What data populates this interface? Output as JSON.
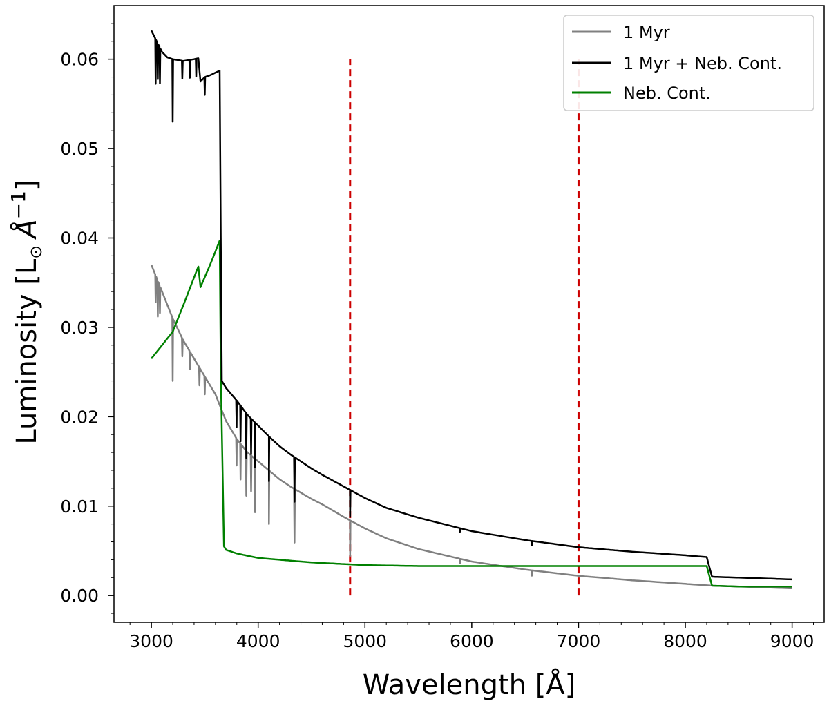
{
  "chart_data": {
    "type": "line",
    "xlabel": "Wavelength [Å]",
    "ylabel_parts": {
      "prefix": "Luminosity [L",
      "sun_symbol": "⊙",
      "unit": "Å",
      "exponent": "−1",
      "suffix": "]"
    },
    "xlim": [
      2650,
      9300
    ],
    "ylim": [
      -0.003,
      0.066
    ],
    "x_ticks": [
      3000,
      4000,
      5000,
      6000,
      7000,
      8000,
      9000
    ],
    "x_tick_labels": [
      "3000",
      "4000",
      "5000",
      "6000",
      "7000",
      "8000",
      "9000"
    ],
    "y_ticks": [
      0.0,
      0.01,
      0.02,
      0.03,
      0.04,
      0.05,
      0.06
    ],
    "y_tick_labels": [
      "0.00",
      "0.01",
      "0.02",
      "0.03",
      "0.04",
      "0.05",
      "0.06"
    ],
    "legend_position": "top-right",
    "series": [
      {
        "name": "1 Myr",
        "color": "#808080",
        "x": [
          3000,
          3100,
          3200,
          3300,
          3400,
          3500,
          3600,
          3700,
          3800,
          3900,
          4000,
          4100,
          4200,
          4300,
          4400,
          4500,
          4600,
          4800,
          5000,
          5200,
          5500,
          6000,
          6500,
          7000,
          7500,
          8000,
          8250,
          8500,
          9000
        ],
        "values": [
          0.037,
          0.034,
          0.031,
          0.0285,
          0.0265,
          0.0245,
          0.0225,
          0.0195,
          0.0175,
          0.016,
          0.015,
          0.014,
          0.013,
          0.0122,
          0.0115,
          0.0108,
          0.0102,
          0.0088,
          0.0075,
          0.0064,
          0.0052,
          0.0038,
          0.0029,
          0.0022,
          0.0017,
          0.0013,
          0.0011,
          0.001,
          0.0008
        ],
        "absorption_lines": [
          {
            "x": 3040,
            "depth": 0.003
          },
          {
            "x": 3060,
            "depth": 0.004
          },
          {
            "x": 3080,
            "depth": 0.003
          },
          {
            "x": 3200,
            "depth": 0.007
          },
          {
            "x": 3290,
            "depth": 0.002
          },
          {
            "x": 3360,
            "depth": 0.002
          },
          {
            "x": 3450,
            "depth": 0.002
          },
          {
            "x": 3500,
            "depth": 0.002
          },
          {
            "x": 3798,
            "depth": 0.003
          },
          {
            "x": 3835,
            "depth": 0.004
          },
          {
            "x": 3889,
            "depth": 0.005
          },
          {
            "x": 3934,
            "depth": 0.004
          },
          {
            "x": 3970,
            "depth": 0.006
          },
          {
            "x": 4101,
            "depth": 0.006
          },
          {
            "x": 4340,
            "depth": 0.006
          },
          {
            "x": 4861,
            "depth": 0.004
          },
          {
            "x": 5890,
            "depth": 0.0005
          },
          {
            "x": 6563,
            "depth": 0.0006
          }
        ]
      },
      {
        "name": "1 Myr + Neb. Cont.",
        "color": "#000000",
        "x": [
          3000,
          3050,
          3100,
          3150,
          3200,
          3300,
          3400,
          3440,
          3460,
          3500,
          3550,
          3600,
          3640,
          3650,
          3660,
          3700,
          3800,
          3900,
          4000,
          4100,
          4200,
          4300,
          4400,
          4500,
          4600,
          4800,
          5000,
          5200,
          5500,
          6000,
          6500,
          7000,
          7500,
          8000,
          8200,
          8250,
          8500,
          9000
        ],
        "values": [
          0.0632,
          0.062,
          0.0608,
          0.0602,
          0.06,
          0.0598,
          0.06,
          0.0601,
          0.0575,
          0.058,
          0.0582,
          0.0585,
          0.0587,
          0.04,
          0.024,
          0.0232,
          0.0218,
          0.0202,
          0.019,
          0.0178,
          0.0167,
          0.0158,
          0.015,
          0.0142,
          0.0135,
          0.0122,
          0.0109,
          0.0098,
          0.0087,
          0.0072,
          0.0062,
          0.0054,
          0.0049,
          0.0045,
          0.0043,
          0.0021,
          0.002,
          0.0018
        ],
        "absorption_lines": [
          {
            "x": 3040,
            "depth": 0.005
          },
          {
            "x": 3060,
            "depth": 0.004
          },
          {
            "x": 3080,
            "depth": 0.004
          },
          {
            "x": 3200,
            "depth": 0.007
          },
          {
            "x": 3290,
            "depth": 0.002
          },
          {
            "x": 3360,
            "depth": 0.002
          },
          {
            "x": 3420,
            "depth": 0.002
          },
          {
            "x": 3500,
            "depth": 0.002
          },
          {
            "x": 3798,
            "depth": 0.003
          },
          {
            "x": 3835,
            "depth": 0.004
          },
          {
            "x": 3889,
            "depth": 0.005
          },
          {
            "x": 3934,
            "depth": 0.004
          },
          {
            "x": 3970,
            "depth": 0.005
          },
          {
            "x": 4101,
            "depth": 0.005
          },
          {
            "x": 4340,
            "depth": 0.005
          },
          {
            "x": 4861,
            "depth": 0.003
          },
          {
            "x": 5890,
            "depth": 0.0004
          },
          {
            "x": 6563,
            "depth": 0.0005
          }
        ]
      },
      {
        "name": "Neb. Cont.",
        "color": "#008000",
        "x": [
          3000,
          3200,
          3300,
          3420,
          3440,
          3460,
          3550,
          3640,
          3650,
          3680,
          3700,
          3800,
          4000,
          4500,
          5000,
          5500,
          6000,
          7000,
          8000,
          8200,
          8250,
          8500,
          9000
        ],
        "values": [
          0.0265,
          0.0295,
          0.0325,
          0.0362,
          0.0368,
          0.0345,
          0.037,
          0.0397,
          0.025,
          0.0055,
          0.0051,
          0.0047,
          0.0042,
          0.0037,
          0.0034,
          0.0033,
          0.0033,
          0.0033,
          0.0033,
          0.0033,
          0.0011,
          0.001,
          0.001
        ]
      }
    ],
    "reference_lines": [
      {
        "x": 4861,
        "color": "#cc0000",
        "style": "dashed",
        "ymin": 0.0,
        "ymax": 0.06
      },
      {
        "x": 7000,
        "color": "#cc0000",
        "style": "dashed",
        "ymin": 0.0,
        "ymax": 0.06
      }
    ]
  }
}
